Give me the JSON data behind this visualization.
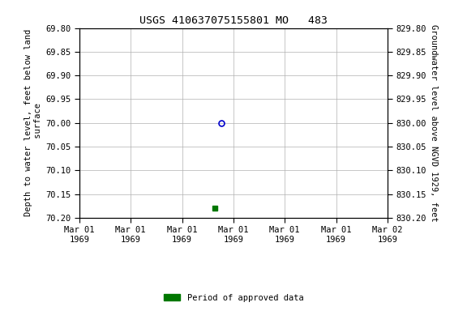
{
  "title": "USGS 410637075155801 MO   483",
  "ylabel_left": "Depth to water level, feet below land\n surface",
  "ylabel_right": "Groundwater level above NGVD 1929, feet",
  "ylim_left": [
    69.8,
    70.2
  ],
  "ylim_right": [
    829.8,
    830.2
  ],
  "y_ticks_left": [
    69.8,
    69.85,
    69.9,
    69.95,
    70.0,
    70.05,
    70.1,
    70.15,
    70.2
  ],
  "y_ticks_right": [
    829.8,
    829.85,
    829.9,
    829.95,
    830.0,
    830.05,
    830.1,
    830.15,
    830.2
  ],
  "data_point_open": {
    "date_num": 0.46,
    "y": 70.0
  },
  "data_point_filled": {
    "date_num": 0.44,
    "y": 70.18
  },
  "x_tick_positions": [
    0.0,
    0.166,
    0.333,
    0.5,
    0.666,
    0.833,
    1.0
  ],
  "x_tick_labels": [
    "Mar 01\n1969",
    "Mar 01\n1969",
    "Mar 01\n1969",
    "Mar 01\n1969",
    "Mar 01\n1969",
    "Mar 01\n1969",
    "Mar 02\n1969"
  ],
  "open_marker_color": "#0000cc",
  "filled_marker_color": "#007700",
  "legend_label": "Period of approved data",
  "legend_color": "#007700",
  "background_color": "#ffffff",
  "grid_color": "#b0b0b0",
  "title_fontsize": 9.5,
  "axis_label_fontsize": 7.5,
  "tick_fontsize": 7.5
}
